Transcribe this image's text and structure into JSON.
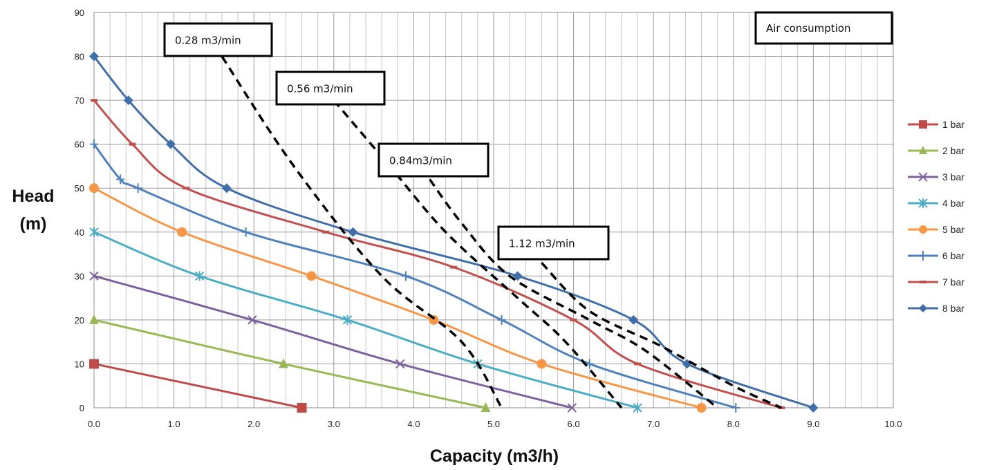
{
  "chart_data": {
    "type": "line",
    "title": "",
    "xlabel": "Capacity (m3/h)",
    "ylabel": [
      "Head",
      "(m)"
    ],
    "xlim": [
      0,
      10
    ],
    "ylim": [
      0,
      90
    ],
    "x_ticks": [
      "0.0",
      "1.0",
      "2.0",
      "3.0",
      "4.0",
      "5.0",
      "6.0",
      "7.0",
      "8.0",
      "9.0",
      "10.0"
    ],
    "y_ticks": [
      "0",
      "10",
      "20",
      "30",
      "40",
      "50",
      "60",
      "70",
      "80",
      "90"
    ],
    "grid": true,
    "legend_position": "right",
    "series": [
      {
        "name": "1 bar",
        "color": "#be4b48",
        "marker": "square",
        "points": [
          [
            0,
            10
          ],
          [
            2.6,
            0
          ]
        ]
      },
      {
        "name": "2 bar",
        "color": "#98b954",
        "marker": "triangle",
        "points": [
          [
            0,
            20
          ],
          [
            2.37,
            10
          ],
          [
            4.9,
            0
          ]
        ]
      },
      {
        "name": "3 bar",
        "color": "#7d60a0",
        "marker": "x",
        "points": [
          [
            0,
            30
          ],
          [
            1.98,
            20
          ],
          [
            3.83,
            10
          ],
          [
            5.98,
            0
          ]
        ]
      },
      {
        "name": "4 bar",
        "color": "#4bacc6",
        "marker": "asterisk",
        "points": [
          [
            0,
            40
          ],
          [
            1.32,
            30
          ],
          [
            3.17,
            20
          ],
          [
            4.8,
            10
          ],
          [
            6.8,
            0
          ]
        ]
      },
      {
        "name": "5 bar",
        "color": "#f79646",
        "marker": "circle",
        "points": [
          [
            0,
            50
          ],
          [
            1.1,
            40
          ],
          [
            2.72,
            30
          ],
          [
            4.25,
            20
          ],
          [
            5.6,
            10
          ],
          [
            7.6,
            0
          ]
        ]
      },
      {
        "name": "6 bar",
        "color": "#4f81bd",
        "marker": "plus",
        "points": [
          [
            0,
            60
          ],
          [
            0.33,
            52
          ],
          [
            0.55,
            50
          ],
          [
            1.9,
            40
          ],
          [
            3.9,
            30
          ],
          [
            5.1,
            20
          ],
          [
            6.2,
            10
          ],
          [
            8.03,
            0
          ]
        ]
      },
      {
        "name": "7 bar",
        "color": "#c0504d",
        "marker": "dash",
        "points": [
          [
            0,
            70
          ],
          [
            0.48,
            60
          ],
          [
            1.15,
            50
          ],
          [
            2.9,
            40
          ],
          [
            4.5,
            32
          ],
          [
            6.0,
            20
          ],
          [
            6.8,
            10
          ],
          [
            8.6,
            0
          ]
        ]
      },
      {
        "name": "8 bar",
        "color": "#3f6ea8",
        "marker": "diamond",
        "points": [
          [
            0,
            80
          ],
          [
            0.43,
            70
          ],
          [
            0.96,
            60
          ],
          [
            1.66,
            50
          ],
          [
            3.24,
            40
          ],
          [
            5.3,
            30
          ],
          [
            6.75,
            20
          ],
          [
            7.42,
            10
          ],
          [
            9.0,
            0
          ]
        ]
      }
    ],
    "air_consumption_lines": [
      {
        "label": "0.28 m3/min",
        "points": [
          [
            1.6,
            80
          ],
          [
            2.5,
            55
          ],
          [
            3.6,
            30
          ],
          [
            4.6,
            15
          ],
          [
            5.1,
            0
          ]
        ]
      },
      {
        "label": "0.56 m3/min",
        "points": [
          [
            3.0,
            70
          ],
          [
            3.7,
            55
          ],
          [
            4.4,
            40
          ],
          [
            5.3,
            25
          ],
          [
            5.9,
            15
          ],
          [
            6.6,
            0
          ]
        ]
      },
      {
        "label": "0.84m3/min",
        "points": [
          [
            4.2,
            52
          ],
          [
            4.6,
            42
          ],
          [
            5.2,
            30
          ],
          [
            6.2,
            20
          ],
          [
            6.9,
            13
          ],
          [
            7.8,
            0
          ]
        ]
      },
      {
        "label": "1.12 m3/min",
        "points": [
          [
            5.6,
            33
          ],
          [
            6.2,
            22
          ],
          [
            7.1,
            14
          ],
          [
            8.0,
            5
          ],
          [
            8.6,
            0
          ]
        ]
      }
    ],
    "annotations": {
      "air_consumption_box": "Air consumption"
    }
  }
}
